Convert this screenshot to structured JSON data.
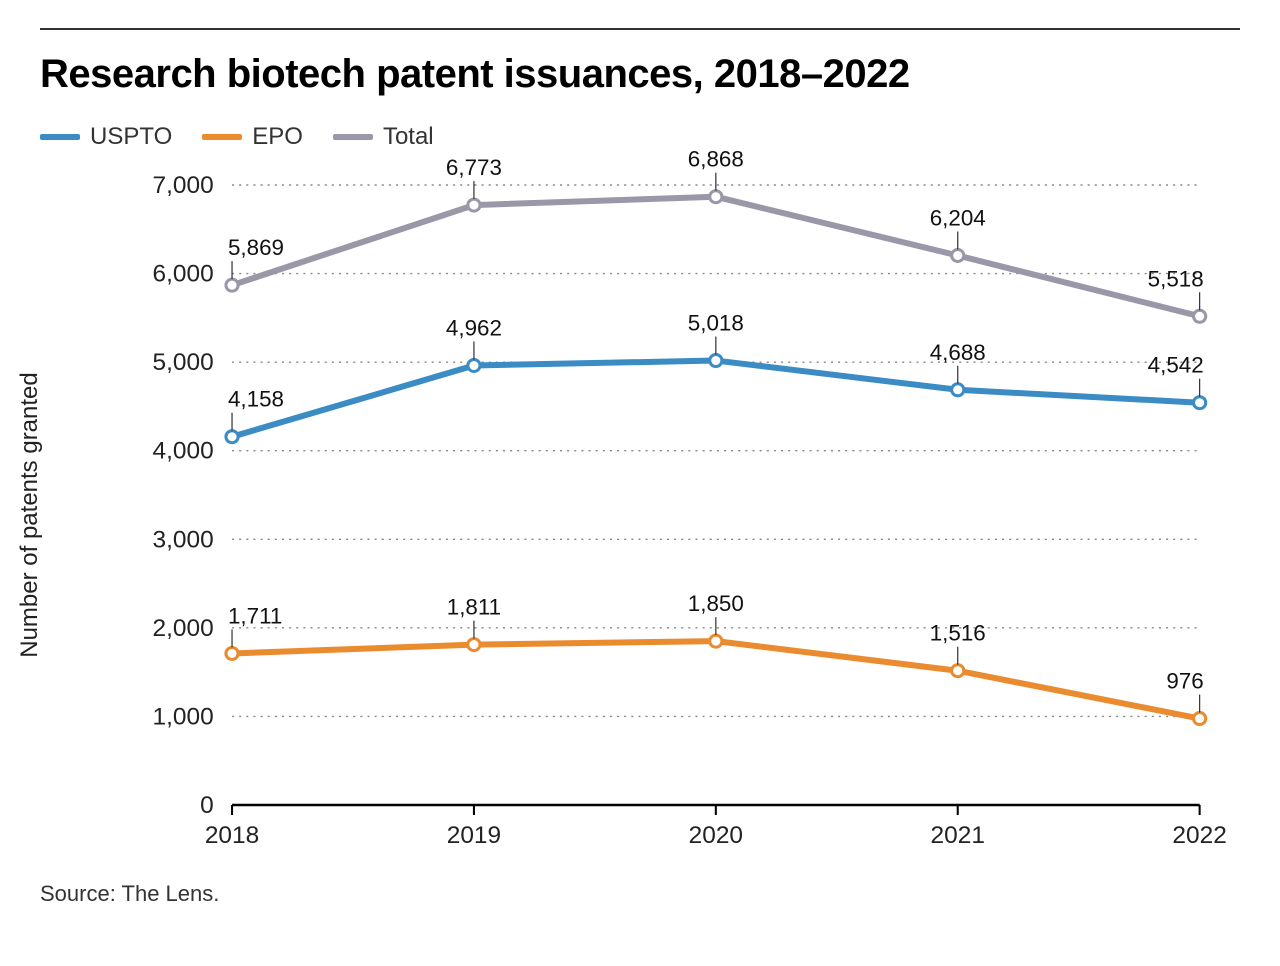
{
  "title": "Research biotech patent issuances, 2018–2022",
  "source": "Source: The Lens.",
  "chart": {
    "type": "line",
    "ylabel": "Number of patents granted",
    "background_color": "#ffffff",
    "grid_color": "#888888",
    "axis_color": "#000000",
    "title_fontsize": 40,
    "label_fontsize": 24,
    "tick_fontsize": 24,
    "data_label_fontsize": 22,
    "line_width": 6,
    "marker_radius": 6,
    "marker_fill": "#ffffff",
    "ylim": [
      0,
      7000
    ],
    "ytick_step": 1000,
    "yticks": [
      0,
      1000,
      2000,
      3000,
      4000,
      5000,
      6000,
      7000
    ],
    "ytick_labels": [
      "0",
      "1,000",
      "2,000",
      "3,000",
      "4,000",
      "5,000",
      "6,000",
      "7,000"
    ],
    "categories": [
      "2018",
      "2019",
      "2020",
      "2021",
      "2022"
    ],
    "series": [
      {
        "name": "USPTO",
        "color": "#3b8bc4",
        "values": [
          4158,
          4962,
          5018,
          4688,
          4542
        ],
        "labels": [
          "4,158",
          "4,962",
          "5,018",
          "4,688",
          "4,542"
        ]
      },
      {
        "name": "EPO",
        "color": "#e98b2e",
        "values": [
          1711,
          1811,
          1850,
          1516,
          976
        ],
        "labels": [
          "1,711",
          "1,811",
          "1,850",
          "1,516",
          "976"
        ]
      },
      {
        "name": "Total",
        "color": "#9a97a8",
        "values": [
          5869,
          6773,
          6868,
          6204,
          5518
        ],
        "labels": [
          "5,869",
          "6,773",
          "6,868",
          "6,204",
          "5,518"
        ]
      }
    ]
  }
}
